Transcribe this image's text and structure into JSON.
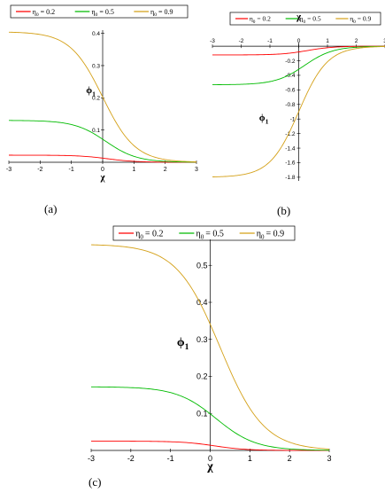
{
  "legend": {
    "subscript": "0",
    "entries": [
      {
        "symbol": "η",
        "value": "= 0.2",
        "color": "#ff0000"
      },
      {
        "symbol": "η",
        "value": "= 0.5",
        "color": "#00bb00"
      },
      {
        "symbol": "η",
        "value": "= 0.9",
        "color": "#d4a017"
      }
    ]
  },
  "axis_labels": {
    "x": "χ",
    "y": "ϕ",
    "y_sub": "1"
  },
  "chart_data": [
    {
      "panel": "a",
      "caption": "(a)",
      "type": "line",
      "xlim": [
        -3,
        3
      ],
      "ylim": [
        0,
        0.41
      ],
      "x_ticks": [
        -3,
        -2,
        -1,
        0,
        1,
        2,
        3
      ],
      "y_ticks": [
        0.1,
        0.2,
        0.3,
        0.4
      ],
      "series": [
        {
          "param": 0.2,
          "left": 0.022,
          "right": 0.0,
          "center": 0.15,
          "width": 0.45
        },
        {
          "param": 0.5,
          "left": 0.13,
          "right": 0.0,
          "center": 0.1,
          "width": 0.5
        },
        {
          "param": 0.9,
          "left": 0.405,
          "right": 0.0,
          "center": 0.0,
          "width": 0.52
        }
      ]
    },
    {
      "panel": "b",
      "caption": "(b)",
      "type": "line",
      "xlim": [
        -3,
        3
      ],
      "ylim": [
        -1.85,
        0.05
      ],
      "x_ticks": [
        -3,
        -2,
        -1,
        0,
        1,
        2,
        3
      ],
      "y_ticks": [
        -0.2,
        -0.4,
        -0.6,
        -0.8,
        -1,
        -1.2,
        -1.4,
        -1.6,
        -1.8
      ],
      "series": [
        {
          "param": 0.2,
          "left": -0.12,
          "right": 0.0,
          "center": 0.3,
          "width": 0.45
        },
        {
          "param": 0.5,
          "left": -0.53,
          "right": 0.0,
          "center": 0.2,
          "width": 0.5
        },
        {
          "param": 0.9,
          "left": -1.8,
          "right": 0.0,
          "center": 0.0,
          "width": 0.5
        }
      ]
    },
    {
      "panel": "c",
      "caption": "(c)",
      "type": "line",
      "xlim": [
        -3,
        3
      ],
      "ylim": [
        0,
        0.57
      ],
      "x_ticks": [
        -3,
        -2,
        -1,
        0,
        1,
        2,
        3
      ],
      "y_ticks": [
        0.1,
        0.2,
        0.3,
        0.4,
        0.5
      ],
      "series": [
        {
          "param": 0.2,
          "left": 0.025,
          "right": 0.0,
          "center": 0.1,
          "width": 0.4
        },
        {
          "param": 0.5,
          "left": 0.172,
          "right": 0.0,
          "center": 0.15,
          "width": 0.5
        },
        {
          "param": 0.9,
          "left": 0.557,
          "right": 0.0,
          "center": 0.25,
          "width": 0.55
        }
      ]
    }
  ]
}
